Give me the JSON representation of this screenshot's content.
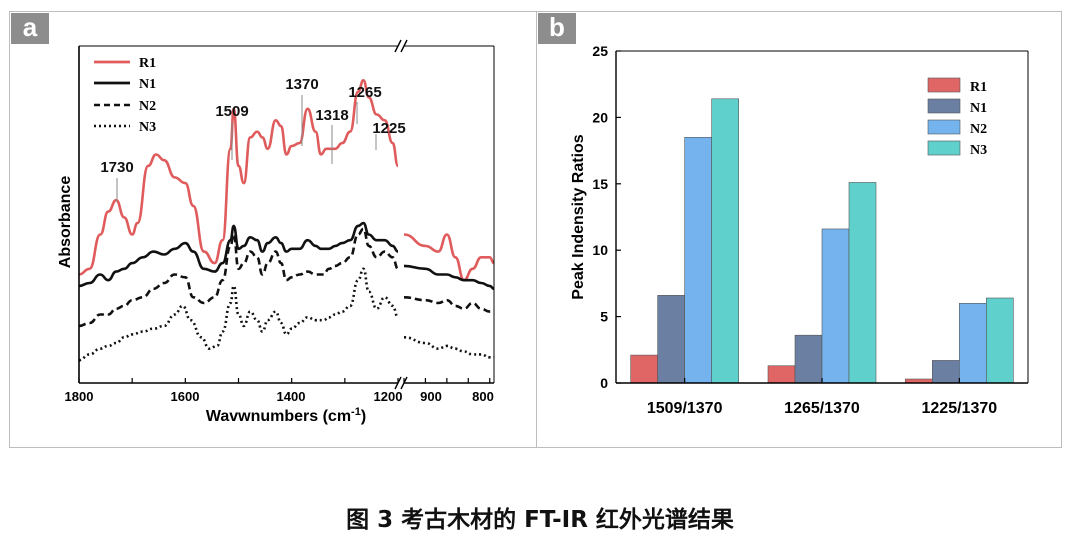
{
  "caption": "图 3  考古木材的 FT-IR 红外光谱结果",
  "colors": {
    "R1": "#e05c5c",
    "N1": "#111111",
    "N2": "#111111",
    "N3": "#111111",
    "bar_R1": "#e06666",
    "bar_N1": "#6b7fa3",
    "bar_N2": "#74b3ee",
    "bar_N3": "#5fd0cc"
  },
  "chart_data": [
    {
      "panel_label": "a",
      "type": "line",
      "xlabel_main": "Wavwnumbers (cm",
      "xlabel_sup": "-1",
      "xlabel_close": ")",
      "ylabel": "Absorbance",
      "x_axis": "reversed, broken between 1200 and 1000 cm-1",
      "xticks": [
        "1800",
        "1600",
        "1400",
        "1200",
        "900",
        "800"
      ],
      "peak_labels": [
        "1730",
        "1509",
        "1370",
        "1318",
        "1265",
        "1225"
      ],
      "legend": [
        "R1",
        "N1",
        "N2",
        "N3"
      ],
      "series": [
        {
          "name": "R1",
          "style": "solid",
          "segments": [
            [
              [
                1800,
                0.38
              ],
              [
                1780,
                0.4
              ],
              [
                1760,
                0.52
              ],
              [
                1745,
                0.6
              ],
              [
                1730,
                0.64
              ],
              [
                1715,
                0.58
              ],
              [
                1700,
                0.52
              ],
              [
                1690,
                0.56
              ],
              [
                1670,
                0.76
              ],
              [
                1655,
                0.8
              ],
              [
                1640,
                0.78
              ],
              [
                1620,
                0.72
              ],
              [
                1600,
                0.7
              ],
              [
                1585,
                0.62
              ],
              [
                1565,
                0.46
              ],
              [
                1545,
                0.42
              ],
              [
                1530,
                0.5
              ],
              [
                1515,
                0.82
              ],
              [
                1509,
                0.96
              ],
              [
                1500,
                0.76
              ],
              [
                1490,
                0.7
              ],
              [
                1478,
                0.86
              ],
              [
                1465,
                0.88
              ],
              [
                1455,
                0.86
              ],
              [
                1445,
                0.82
              ],
              [
                1430,
                0.92
              ],
              [
                1420,
                0.9
              ],
              [
                1410,
                0.8
              ],
              [
                1400,
                0.83
              ],
              [
                1385,
                0.84
              ],
              [
                1370,
                0.96
              ],
              [
                1355,
                0.88
              ],
              [
                1345,
                0.8
              ],
              [
                1335,
                0.82
              ],
              [
                1318,
                0.82
              ],
              [
                1305,
                0.84
              ],
              [
                1290,
                0.88
              ],
              [
                1275,
                1.02
              ],
              [
                1265,
                1.06
              ],
              [
                1255,
                1.0
              ],
              [
                1240,
                0.94
              ],
              [
                1225,
                0.92
              ],
              [
                1210,
                0.84
              ],
              [
                1200,
                0.76
              ]
            ],
            [
              [
                1000,
                0.52
              ],
              [
                950,
                0.48
              ],
              [
                920,
                0.46
              ],
              [
                900,
                0.52
              ],
              [
                880,
                0.44
              ],
              [
                860,
                0.36
              ],
              [
                840,
                0.4
              ],
              [
                820,
                0.44
              ],
              [
                800,
                0.44
              ],
              [
                790,
                0.42
              ]
            ]
          ]
        },
        {
          "name": "N1",
          "style": "solid",
          "segments": [
            [
              [
                1800,
                0.34
              ],
              [
                1780,
                0.35
              ],
              [
                1760,
                0.38
              ],
              [
                1745,
                0.36
              ],
              [
                1730,
                0.39
              ],
              [
                1715,
                0.4
              ],
              [
                1700,
                0.42
              ],
              [
                1680,
                0.44
              ],
              [
                1660,
                0.46
              ],
              [
                1640,
                0.45
              ],
              [
                1620,
                0.47
              ],
              [
                1600,
                0.49
              ],
              [
                1585,
                0.46
              ],
              [
                1565,
                0.4
              ],
              [
                1545,
                0.39
              ],
              [
                1530,
                0.42
              ],
              [
                1515,
                0.5
              ],
              [
                1509,
                0.55
              ],
              [
                1500,
                0.47
              ],
              [
                1490,
                0.48
              ],
              [
                1478,
                0.51
              ],
              [
                1465,
                0.5
              ],
              [
                1455,
                0.46
              ],
              [
                1445,
                0.49
              ],
              [
                1430,
                0.51
              ],
              [
                1420,
                0.49
              ],
              [
                1410,
                0.46
              ],
              [
                1400,
                0.47
              ],
              [
                1385,
                0.47
              ],
              [
                1370,
                0.5
              ],
              [
                1355,
                0.48
              ],
              [
                1345,
                0.47
              ],
              [
                1330,
                0.47
              ],
              [
                1318,
                0.48
              ],
              [
                1305,
                0.49
              ],
              [
                1290,
                0.5
              ],
              [
                1275,
                0.55
              ],
              [
                1265,
                0.56
              ],
              [
                1255,
                0.52
              ],
              [
                1240,
                0.5
              ],
              [
                1225,
                0.5
              ],
              [
                1210,
                0.48
              ],
              [
                1200,
                0.46
              ]
            ],
            [
              [
                1000,
                0.41
              ],
              [
                950,
                0.4
              ],
              [
                920,
                0.38
              ],
              [
                900,
                0.38
              ],
              [
                880,
                0.37
              ],
              [
                860,
                0.36
              ],
              [
                840,
                0.36
              ],
              [
                820,
                0.35
              ],
              [
                800,
                0.34
              ],
              [
                790,
                0.33
              ]
            ]
          ]
        },
        {
          "name": "N2",
          "style": "dashed",
          "segments": [
            [
              [
                1800,
                0.2
              ],
              [
                1780,
                0.21
              ],
              [
                1760,
                0.24
              ],
              [
                1745,
                0.24
              ],
              [
                1730,
                0.26
              ],
              [
                1715,
                0.27
              ],
              [
                1700,
                0.29
              ],
              [
                1680,
                0.3
              ],
              [
                1660,
                0.33
              ],
              [
                1640,
                0.35
              ],
              [
                1620,
                0.38
              ],
              [
                1600,
                0.37
              ],
              [
                1585,
                0.3
              ],
              [
                1565,
                0.28
              ],
              [
                1545,
                0.3
              ],
              [
                1530,
                0.36
              ],
              [
                1515,
                0.48
              ],
              [
                1509,
                0.52
              ],
              [
                1500,
                0.4
              ],
              [
                1490,
                0.42
              ],
              [
                1478,
                0.46
              ],
              [
                1465,
                0.44
              ],
              [
                1455,
                0.38
              ],
              [
                1445,
                0.42
              ],
              [
                1430,
                0.46
              ],
              [
                1420,
                0.42
              ],
              [
                1410,
                0.36
              ],
              [
                1400,
                0.37
              ],
              [
                1385,
                0.38
              ],
              [
                1370,
                0.39
              ],
              [
                1355,
                0.38
              ],
              [
                1340,
                0.38
              ],
              [
                1330,
                0.4
              ],
              [
                1318,
                0.41
              ],
              [
                1305,
                0.42
              ],
              [
                1290,
                0.44
              ],
              [
                1275,
                0.52
              ],
              [
                1265,
                0.54
              ],
              [
                1255,
                0.48
              ],
              [
                1240,
                0.44
              ],
              [
                1225,
                0.46
              ],
              [
                1210,
                0.44
              ],
              [
                1200,
                0.4
              ]
            ],
            [
              [
                1000,
                0.3
              ],
              [
                950,
                0.29
              ],
              [
                920,
                0.28
              ],
              [
                900,
                0.29
              ],
              [
                880,
                0.27
              ],
              [
                860,
                0.26
              ],
              [
                840,
                0.28
              ],
              [
                820,
                0.26
              ],
              [
                800,
                0.25
              ],
              [
                790,
                0.25
              ]
            ]
          ]
        },
        {
          "name": "N3",
          "style": "dotted",
          "segments": [
            [
              [
                1800,
                0.08
              ],
              [
                1780,
                0.1
              ],
              [
                1760,
                0.12
              ],
              [
                1745,
                0.13
              ],
              [
                1730,
                0.14
              ],
              [
                1715,
                0.16
              ],
              [
                1700,
                0.17
              ],
              [
                1680,
                0.18
              ],
              [
                1660,
                0.19
              ],
              [
                1640,
                0.2
              ],
              [
                1620,
                0.24
              ],
              [
                1605,
                0.27
              ],
              [
                1590,
                0.22
              ],
              [
                1570,
                0.16
              ],
              [
                1555,
                0.12
              ],
              [
                1540,
                0.13
              ],
              [
                1530,
                0.18
              ],
              [
                1515,
                0.28
              ],
              [
                1509,
                0.34
              ],
              [
                1500,
                0.24
              ],
              [
                1490,
                0.2
              ],
              [
                1478,
                0.25
              ],
              [
                1465,
                0.22
              ],
              [
                1455,
                0.18
              ],
              [
                1445,
                0.22
              ],
              [
                1430,
                0.25
              ],
              [
                1420,
                0.21
              ],
              [
                1410,
                0.17
              ],
              [
                1400,
                0.19
              ],
              [
                1385,
                0.21
              ],
              [
                1370,
                0.23
              ],
              [
                1355,
                0.22
              ],
              [
                1340,
                0.22
              ],
              [
                1330,
                0.23
              ],
              [
                1318,
                0.24
              ],
              [
                1305,
                0.25
              ],
              [
                1290,
                0.27
              ],
              [
                1275,
                0.36
              ],
              [
                1265,
                0.4
              ],
              [
                1255,
                0.32
              ],
              [
                1240,
                0.26
              ],
              [
                1225,
                0.3
              ],
              [
                1210,
                0.27
              ],
              [
                1200,
                0.23
              ]
            ],
            [
              [
                1000,
                0.16
              ],
              [
                950,
                0.14
              ],
              [
                920,
                0.12
              ],
              [
                900,
                0.13
              ],
              [
                880,
                0.12
              ],
              [
                860,
                0.11
              ],
              [
                840,
                0.1
              ],
              [
                820,
                0.1
              ],
              [
                800,
                0.09
              ],
              [
                790,
                0.09
              ]
            ]
          ]
        }
      ]
    },
    {
      "panel_label": "b",
      "type": "bar",
      "ylabel": "Peak Indensity Ratios",
      "ylim": [
        0,
        25
      ],
      "yticks": [
        "0",
        "5",
        "10",
        "15",
        "20",
        "25"
      ],
      "categories": [
        "1509/1370",
        "1265/1370",
        "1225/1370"
      ],
      "series": [
        {
          "name": "R1",
          "values": [
            2.1,
            1.3,
            0.3
          ]
        },
        {
          "name": "N1",
          "values": [
            6.6,
            3.6,
            1.7
          ]
        },
        {
          "name": "N2",
          "values": [
            18.5,
            11.6,
            6.0
          ]
        },
        {
          "name": "N3",
          "values": [
            21.4,
            15.1,
            6.4
          ]
        }
      ]
    }
  ]
}
